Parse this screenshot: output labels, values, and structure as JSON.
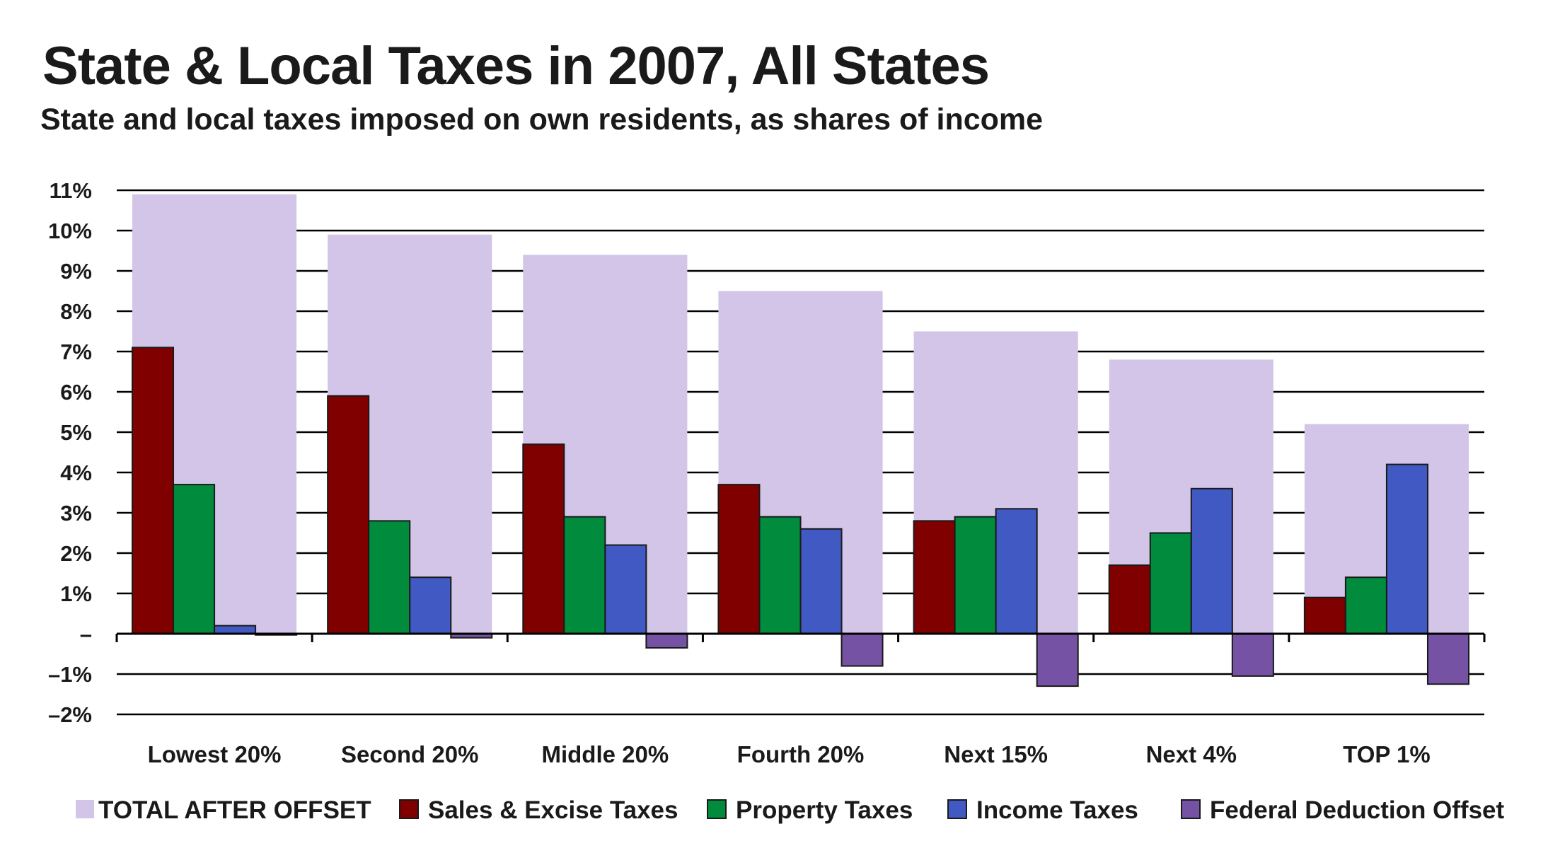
{
  "chart_data": {
    "type": "bar",
    "title": "State & Local Taxes in 2007, All States",
    "subtitle": "State and local taxes imposed on own residents, as shares of income",
    "categories": [
      "Lowest 20%",
      "Second 20%",
      "Middle 20%",
      "Fourth 20%",
      "Next 15%",
      "Next 4%",
      "TOP 1%"
    ],
    "total": {
      "name": "TOTAL AFTER OFFSET",
      "color": "#d3c5e8",
      "values": [
        10.9,
        9.9,
        9.4,
        8.5,
        7.5,
        6.8,
        5.2
      ]
    },
    "series": [
      {
        "name": "Sales & Excise Taxes",
        "color": "#800000",
        "values": [
          7.1,
          5.9,
          4.7,
          3.7,
          2.8,
          1.7,
          0.9
        ]
      },
      {
        "name": "Property Taxes",
        "color": "#008c3c",
        "values": [
          3.7,
          2.8,
          2.9,
          2.9,
          2.9,
          2.5,
          1.4
        ]
      },
      {
        "name": "Income Taxes",
        "color": "#4159c2",
        "values": [
          0.2,
          1.4,
          2.2,
          2.6,
          3.1,
          3.6,
          4.2
        ]
      },
      {
        "name": "Federal Deduction Offset",
        "color": "#7552a3",
        "values": [
          -0.03,
          -0.1,
          -0.35,
          -0.8,
          -1.3,
          -1.05,
          -1.25
        ]
      }
    ],
    "ylim": [
      -2,
      11
    ],
    "yticks": [
      11,
      10,
      9,
      8,
      7,
      6,
      5,
      4,
      3,
      2,
      1,
      0,
      -1,
      -2
    ],
    "ytick_labels": [
      "11%",
      "10%",
      "9%",
      "8%",
      "7%",
      "6%",
      "5%",
      "4%",
      "3%",
      "2%",
      "1%",
      "–",
      "–1%",
      "–2%"
    ],
    "grid": true,
    "legend_position": "bottom",
    "xlabel": "",
    "ylabel": ""
  }
}
